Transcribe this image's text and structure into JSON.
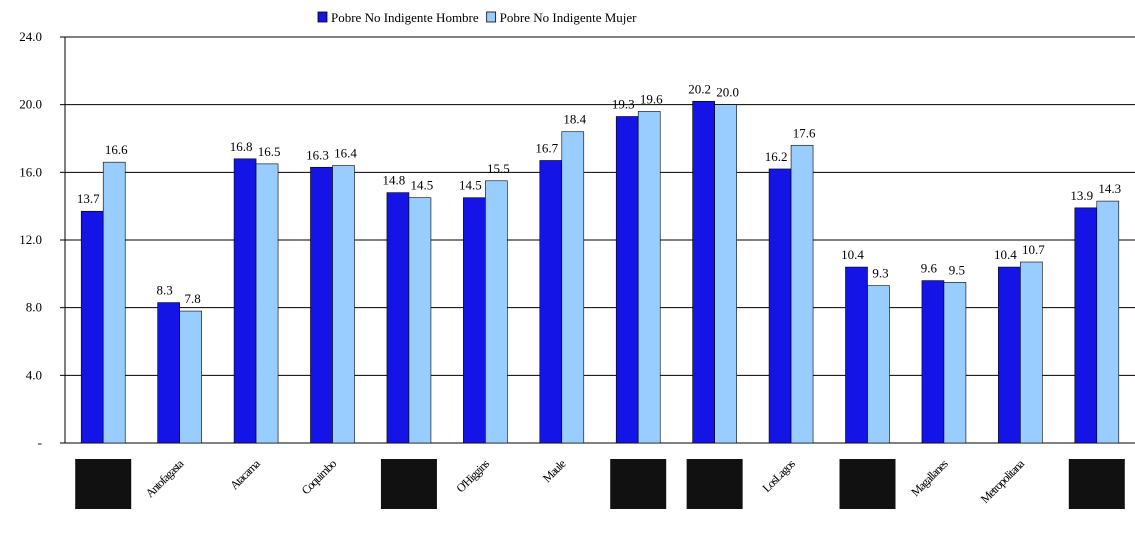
{
  "chart_data": {
    "type": "bar",
    "categories": [
      null,
      "Antofagasta",
      "Atacama",
      "Coquimbo",
      null,
      "O'Higgins",
      "Maule",
      null,
      null,
      "LosLagos",
      null,
      "Magallanes",
      "Metropolitana",
      null
    ],
    "series": [
      {
        "name": "Pobre No Indigente Hombre",
        "color": "#1414e6",
        "values": [
          13.7,
          8.3,
          16.8,
          16.3,
          14.8,
          14.5,
          16.7,
          19.3,
          20.2,
          16.2,
          10.4,
          9.6,
          10.4,
          13.9
        ],
        "value_labels": [
          "13.7",
          "8.3",
          "16.8",
          "16.3",
          "14.8",
          "14.5",
          "16.7",
          "19.3",
          "20.2",
          "16.2",
          "10.4",
          "9.6",
          "10.4",
          "13.9"
        ]
      },
      {
        "name": "Pobre No Indigente Mujer",
        "color": "#99ccff",
        "values": [
          16.6,
          7.8,
          16.5,
          16.4,
          14.5,
          15.5,
          18.4,
          19.6,
          20.0,
          17.6,
          9.3,
          9.5,
          10.7,
          14.3
        ],
        "value_labels": [
          "16.6",
          "7.8",
          "16.5",
          "16.4",
          "14.5",
          "15.5",
          "18.4",
          "19.6",
          "20.0",
          "17.6",
          "9.3",
          "9.5",
          "10.7",
          "14.3"
        ]
      }
    ],
    "ylim": [
      0,
      24
    ],
    "yticks": [
      {
        "value": 0,
        "label": "-"
      },
      {
        "value": 4,
        "label": "4.0"
      },
      {
        "value": 8,
        "label": "8.0"
      },
      {
        "value": 12,
        "label": "12.0"
      },
      {
        "value": 16,
        "label": "16.0"
      },
      {
        "value": 20,
        "label": "20.0"
      },
      {
        "value": 24,
        "label": "24.0"
      }
    ],
    "grid": true
  }
}
